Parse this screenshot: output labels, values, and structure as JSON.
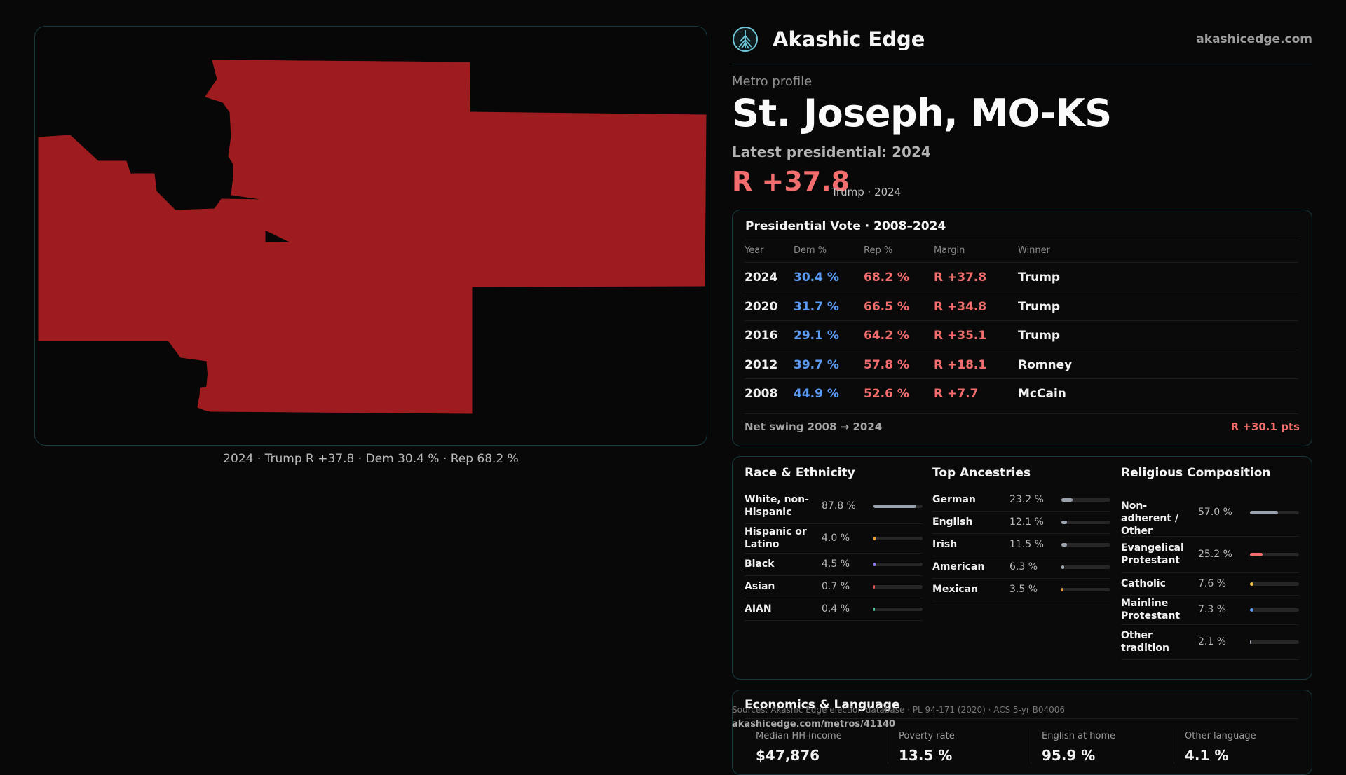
{
  "map": {
    "fill_color": "#9e1c1f",
    "caption": "2024 · Trump R +37.8 · Dem 30.4 % · Rep 68.2 %"
  },
  "brand": {
    "name": "Akashic Edge",
    "url": "akashicedge.com",
    "logo_icon": "tree-logo-icon"
  },
  "header": {
    "eyebrow": "Metro profile",
    "title": "St. Joseph, MO-KS",
    "latest_label": "Latest presidential: 2024",
    "margin": "R +37.8",
    "margin_sub": "Trump · 2024"
  },
  "vote_table": {
    "title": "Presidential Vote · 2008–2024",
    "columns": [
      "Year",
      "Dem %",
      "Rep %",
      "Margin",
      "Winner"
    ],
    "rows": [
      {
        "year": "2024",
        "dem": "30.4 %",
        "rep": "68.2 %",
        "margin": "R +37.8",
        "winner": "Trump"
      },
      {
        "year": "2020",
        "dem": "31.7 %",
        "rep": "66.5 %",
        "margin": "R +34.8",
        "winner": "Trump"
      },
      {
        "year": "2016",
        "dem": "29.1 %",
        "rep": "64.2 %",
        "margin": "R +35.1",
        "winner": "Trump"
      },
      {
        "year": "2012",
        "dem": "39.7 %",
        "rep": "57.8 %",
        "margin": "R +18.1",
        "winner": "Romney"
      },
      {
        "year": "2008",
        "dem": "44.9 %",
        "rep": "52.6 %",
        "margin": "R +7.7",
        "winner": "McCain"
      }
    ],
    "swing_label": "Net swing 2008 → 2024",
    "swing_value": "R +30.1 pts"
  },
  "race": {
    "title": "Race & Ethnicity",
    "items": [
      {
        "label": "White, non-Hispanic",
        "value": "87.8 %",
        "pct": 87.8,
        "color": "#9aa3ad"
      },
      {
        "label": "Hispanic or Latino",
        "value": "4.0 %",
        "pct": 4.0,
        "color": "#f0a030"
      },
      {
        "label": "Black",
        "value": "4.5 %",
        "pct": 4.5,
        "color": "#8a7cf0"
      },
      {
        "label": "Asian",
        "value": "0.7 %",
        "pct": 0.7,
        "color": "#e05050"
      },
      {
        "label": "AIAN",
        "value": "0.4 %",
        "pct": 0.4,
        "color": "#50c0a0"
      }
    ]
  },
  "ancestry": {
    "title": "Top Ancestries",
    "items": [
      {
        "label": "German",
        "value": "23.2 %",
        "pct": 23.2,
        "color": "#9aa3ad"
      },
      {
        "label": "English",
        "value": "12.1 %",
        "pct": 12.1,
        "color": "#9aa3ad"
      },
      {
        "label": "Irish",
        "value": "11.5 %",
        "pct": 11.5,
        "color": "#9aa3ad"
      },
      {
        "label": "American",
        "value": "6.3 %",
        "pct": 6.3,
        "color": "#9aa3ad"
      },
      {
        "label": "Mexican",
        "value": "3.5 %",
        "pct": 3.5,
        "color": "#f0a030"
      }
    ]
  },
  "religion": {
    "title": "Religious Composition",
    "items": [
      {
        "label": "Non-adherent / Other",
        "value": "57.0 %",
        "pct": 57.0,
        "color": "#9aa3ad"
      },
      {
        "label": "Evangelical Protestant",
        "value": "25.2 %",
        "pct": 25.2,
        "color": "#f26d6d"
      },
      {
        "label": "Catholic",
        "value": "7.6 %",
        "pct": 7.6,
        "color": "#f0c040"
      },
      {
        "label": "Mainline Protestant",
        "value": "7.3 %",
        "pct": 7.3,
        "color": "#5b9af5"
      },
      {
        "label": "Other tradition",
        "value": "2.1 %",
        "pct": 2.1,
        "color": "#9aa3ad"
      }
    ]
  },
  "economics": {
    "title": "Economics & Language",
    "cells": [
      {
        "label": "Median HH income",
        "value": "$47,876"
      },
      {
        "label": "Poverty rate",
        "value": "13.5 %"
      },
      {
        "label": "English at home",
        "value": "95.9 %"
      },
      {
        "label": "Other language",
        "value": "4.1 %"
      }
    ]
  },
  "footer": {
    "sources": "Sources: Akashic Edge election database · PL 94-171 (2020) · ACS 5-yr B04006",
    "url": "akashicedge.com/metros/41140"
  }
}
